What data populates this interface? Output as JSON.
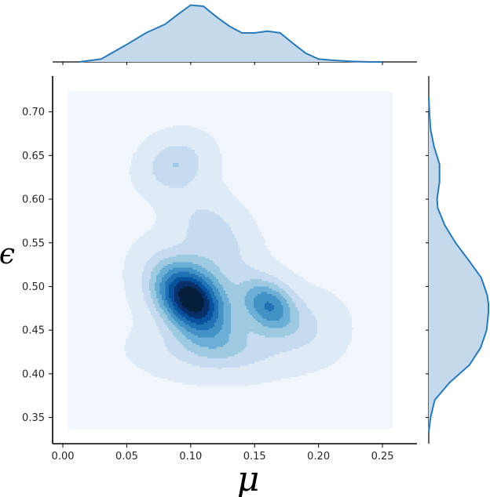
{
  "chart_data": {
    "type": "jointplot-kde",
    "xlabel": "μ",
    "ylabel": "ϵ",
    "xlim": [
      -0.008,
      0.277
    ],
    "ylim": [
      0.32,
      0.741
    ],
    "x_ticks": [
      "0.00",
      "0.05",
      "0.10",
      "0.15",
      "0.20",
      "0.25"
    ],
    "y_ticks": [
      "0.35",
      "0.40",
      "0.45",
      "0.50",
      "0.55",
      "0.60",
      "0.65",
      "0.70"
    ],
    "joint_support": {
      "x": [
        0.004,
        0.258
      ],
      "y": [
        0.337,
        0.723
      ]
    },
    "joint_density": {
      "levels": 9,
      "modes": [
        {
          "x": 0.102,
          "y": 0.485,
          "role": "primary"
        },
        {
          "x": 0.16,
          "y": 0.48,
          "role": "secondary"
        },
        {
          "x": 0.09,
          "y": 0.645,
          "role": "upper"
        }
      ]
    },
    "marginal_x": {
      "x": [
        0.013,
        0.03,
        0.05,
        0.065,
        0.08,
        0.09,
        0.1,
        0.11,
        0.12,
        0.13,
        0.14,
        0.15,
        0.16,
        0.17,
        0.18,
        0.19,
        0.2,
        0.21,
        0.225,
        0.24,
        0.25
      ],
      "density": [
        0.0,
        0.05,
        0.3,
        0.5,
        0.65,
        0.82,
        0.98,
        0.96,
        0.78,
        0.62,
        0.5,
        0.5,
        0.53,
        0.5,
        0.32,
        0.15,
        0.05,
        0.03,
        0.01,
        0.0,
        0.0
      ]
    },
    "marginal_y": {
      "y": [
        0.333,
        0.35,
        0.37,
        0.39,
        0.41,
        0.43,
        0.45,
        0.47,
        0.48,
        0.49,
        0.51,
        0.53,
        0.55,
        0.57,
        0.59,
        0.6,
        0.62,
        0.64,
        0.66,
        0.68,
        0.7,
        0.717
      ],
      "density": [
        0.0,
        0.03,
        0.1,
        0.35,
        0.68,
        0.87,
        0.97,
        1.0,
        1.0,
        0.98,
        0.88,
        0.67,
        0.45,
        0.27,
        0.15,
        0.14,
        0.18,
        0.18,
        0.09,
        0.03,
        0.01,
        0.0
      ]
    },
    "colors": {
      "background_fill": "#f0f6fc",
      "contour_levels": [
        "#deebf7",
        "#c6dbef",
        "#9ecae1",
        "#6baed6",
        "#4292c6",
        "#2171b5",
        "#08519c",
        "#08306b",
        "#041e3c"
      ],
      "marginal_line": "#2a7ab8",
      "marginal_fill": "#c5d9ec",
      "axis": "#000000"
    }
  }
}
